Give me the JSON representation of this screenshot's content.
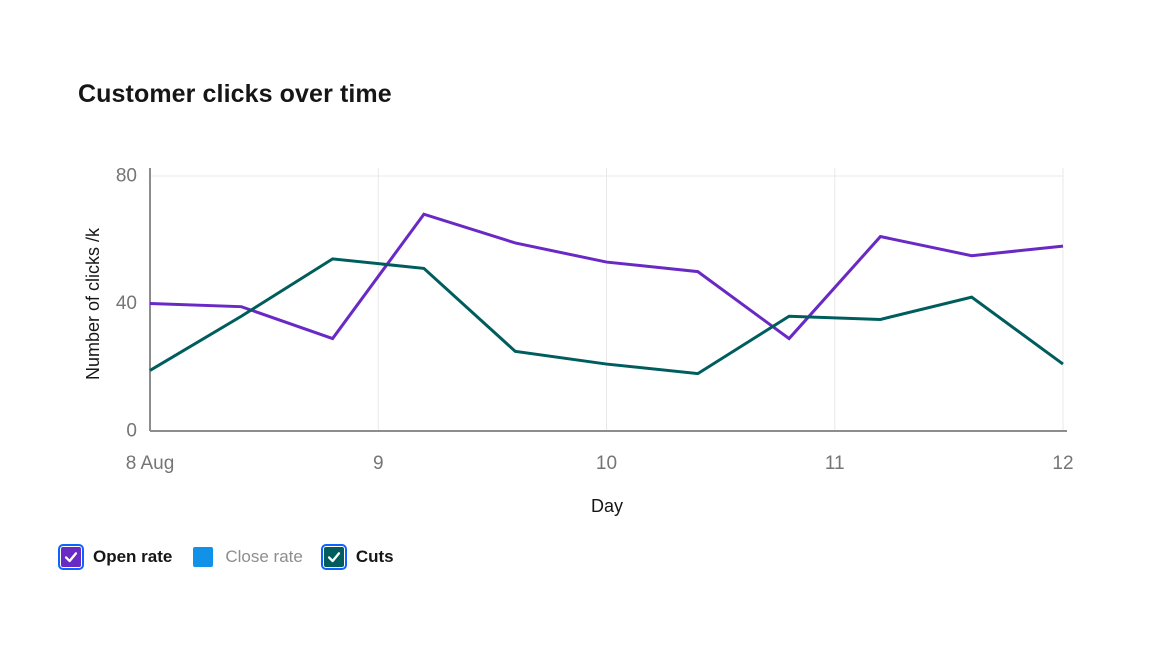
{
  "title": "Customer clicks over time",
  "chart_data": {
    "type": "line",
    "title": "Customer clicks over time",
    "xlabel": "Day",
    "ylabel": "Number of clicks /k",
    "xlim": [
      8,
      12
    ],
    "ylim": [
      0,
      80
    ],
    "x_ticks": [
      {
        "value": 8,
        "label": "8 Aug"
      },
      {
        "value": 9,
        "label": "9"
      },
      {
        "value": 10,
        "label": "10"
      },
      {
        "value": 11,
        "label": "11"
      },
      {
        "value": 12,
        "label": "12"
      }
    ],
    "y_ticks": [
      {
        "value": 0,
        "label": "0"
      },
      {
        "value": 40,
        "label": "40"
      },
      {
        "value": 80,
        "label": "80"
      }
    ],
    "grid": {
      "vertical_at": [
        9,
        10,
        11,
        12
      ],
      "horizontal_at": [
        80
      ]
    },
    "legend_position": "bottom-left",
    "x": [
      8,
      8.4,
      8.8,
      9.2,
      9.6,
      10,
      10.4,
      10.8,
      11.2,
      11.6,
      12
    ],
    "series": [
      {
        "name": "Open rate",
        "color": "#6929c4",
        "visible": true,
        "values": [
          40,
          39,
          29,
          68,
          59,
          53,
          50,
          29,
          61,
          55,
          58
        ]
      },
      {
        "name": "Close rate",
        "color": "#1192e8",
        "visible": false,
        "values": []
      },
      {
        "name": "Cuts",
        "color": "#005d5d",
        "visible": true,
        "values": [
          19,
          36,
          54,
          51,
          25,
          21,
          18,
          36,
          35,
          42,
          21
        ]
      }
    ]
  },
  "legend": {
    "focus_border_color": "#0f62fe",
    "checkmark_color": "#ffffff",
    "items": [
      {
        "label": "Open rate",
        "color": "#6929c4",
        "checked": true
      },
      {
        "label": "Close rate",
        "color": "#1192e8",
        "checked": false
      },
      {
        "label": "Cuts",
        "color": "#005d5d",
        "checked": true
      }
    ]
  },
  "colors": {
    "title_text": "#161616",
    "tick_text": "#757575",
    "axis_line": "#8d8d8d",
    "gridline": "#e8e8e8",
    "background": "#ffffff"
  }
}
